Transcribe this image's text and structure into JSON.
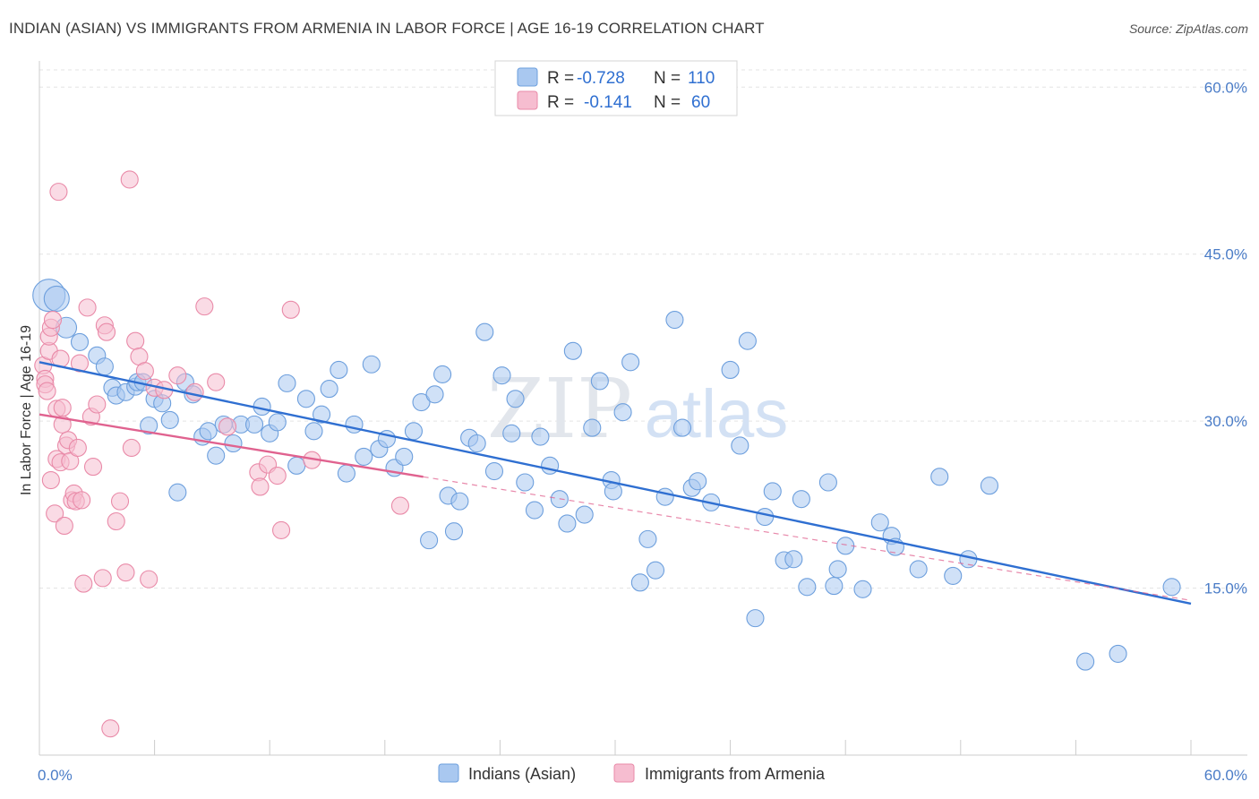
{
  "header": {
    "title": "INDIAN (ASIAN) VS IMMIGRANTS FROM ARMENIA IN LABOR FORCE | AGE 16-19 CORRELATION CHART",
    "source": "Source: ZipAtlas.com"
  },
  "legend": {
    "r_label": "R =",
    "n_label": "N =",
    "series": [
      {
        "r": "-0.728",
        "n": "110",
        "color": "#a9c8f0",
        "stroke": "#6d9fdd"
      },
      {
        "r": "-0.141",
        "n": "60",
        "color": "#f6bdd0",
        "stroke": "#e98aa8"
      }
    ]
  },
  "watermark": {
    "zip": "ZIP",
    "atlas": "atlas"
  },
  "chart_data": {
    "type": "scatter",
    "title": "INDIAN (ASIAN) VS IMMIGRANTS FROM ARMENIA IN LABOR FORCE | AGE 16-19 CORRELATION CHART",
    "xlabel": "",
    "ylabel": "In Labor Force | Age 16-19",
    "xlim": [
      0,
      60
    ],
    "ylim": [
      0,
      63
    ],
    "x_tick_labels": [
      "0.0%",
      "60.0%"
    ],
    "y_ticks": [
      15,
      30,
      45,
      60
    ],
    "y_tick_labels": [
      "15.0%",
      "30.0%",
      "45.0%",
      "60.0%"
    ],
    "grid": true,
    "legend_position": "bottom-center",
    "series": [
      {
        "name": "Indians (Asian)",
        "color": "#a9c8f0",
        "stroke": "#6d9fdd",
        "line_color": "#2f6fd1",
        "trend": {
          "x": [
            0,
            60
          ],
          "y": [
            35.3,
            13.6
          ]
        },
        "points": [
          [
            0.5,
            41.3
          ],
          [
            0.9,
            41.0
          ],
          [
            1.4,
            38.4
          ],
          [
            2.1,
            37.1
          ],
          [
            3.0,
            35.9
          ],
          [
            3.4,
            34.9
          ],
          [
            3.8,
            33.0
          ],
          [
            4.0,
            32.3
          ],
          [
            4.5,
            32.6
          ],
          [
            5.0,
            33.1
          ],
          [
            5.1,
            33.5
          ],
          [
            5.4,
            33.5
          ],
          [
            5.7,
            29.6
          ],
          [
            6.0,
            32.0
          ],
          [
            6.4,
            31.6
          ],
          [
            6.8,
            30.1
          ],
          [
            7.2,
            23.6
          ],
          [
            7.6,
            33.5
          ],
          [
            8.0,
            32.4
          ],
          [
            8.5,
            28.6
          ],
          [
            8.8,
            29.1
          ],
          [
            9.2,
            26.9
          ],
          [
            9.6,
            29.7
          ],
          [
            10.1,
            28.0
          ],
          [
            10.5,
            29.7
          ],
          [
            11.2,
            29.7
          ],
          [
            11.6,
            31.3
          ],
          [
            12.0,
            28.9
          ],
          [
            12.4,
            29.9
          ],
          [
            12.9,
            33.4
          ],
          [
            13.4,
            26.0
          ],
          [
            13.9,
            32.0
          ],
          [
            14.3,
            29.1
          ],
          [
            14.7,
            30.6
          ],
          [
            15.1,
            32.9
          ],
          [
            15.6,
            34.6
          ],
          [
            16.0,
            25.3
          ],
          [
            16.4,
            29.7
          ],
          [
            16.9,
            26.8
          ],
          [
            17.3,
            35.1
          ],
          [
            17.7,
            27.5
          ],
          [
            18.1,
            28.4
          ],
          [
            18.5,
            25.8
          ],
          [
            19.0,
            26.8
          ],
          [
            19.5,
            29.1
          ],
          [
            19.9,
            31.7
          ],
          [
            20.3,
            19.3
          ],
          [
            20.6,
            32.4
          ],
          [
            21.0,
            34.2
          ],
          [
            21.3,
            23.3
          ],
          [
            21.6,
            20.1
          ],
          [
            21.9,
            22.8
          ],
          [
            22.4,
            28.5
          ],
          [
            22.8,
            28.0
          ],
          [
            23.2,
            38.0
          ],
          [
            23.7,
            25.5
          ],
          [
            24.1,
            34.1
          ],
          [
            24.6,
            28.9
          ],
          [
            24.8,
            32.0
          ],
          [
            25.3,
            24.5
          ],
          [
            25.8,
            22.0
          ],
          [
            26.1,
            28.6
          ],
          [
            26.6,
            26.0
          ],
          [
            27.1,
            23.0
          ],
          [
            27.5,
            20.8
          ],
          [
            27.8,
            36.3
          ],
          [
            28.4,
            21.6
          ],
          [
            28.8,
            29.4
          ],
          [
            29.2,
            33.6
          ],
          [
            29.8,
            24.7
          ],
          [
            29.9,
            23.7
          ],
          [
            30.4,
            30.8
          ],
          [
            30.8,
            35.3
          ],
          [
            31.3,
            15.5
          ],
          [
            31.7,
            19.4
          ],
          [
            32.1,
            16.6
          ],
          [
            32.6,
            23.2
          ],
          [
            33.1,
            39.1
          ],
          [
            33.5,
            29.4
          ],
          [
            34.0,
            24.0
          ],
          [
            34.3,
            24.6
          ],
          [
            35.0,
            22.7
          ],
          [
            36.0,
            34.6
          ],
          [
            36.5,
            27.8
          ],
          [
            36.9,
            37.2
          ],
          [
            37.3,
            12.3
          ],
          [
            37.8,
            21.4
          ],
          [
            38.2,
            23.7
          ],
          [
            38.8,
            17.5
          ],
          [
            39.3,
            17.6
          ],
          [
            39.7,
            23.0
          ],
          [
            40.0,
            15.1
          ],
          [
            41.1,
            24.5
          ],
          [
            41.4,
            15.2
          ],
          [
            41.6,
            16.7
          ],
          [
            42.0,
            18.8
          ],
          [
            42.9,
            14.9
          ],
          [
            43.8,
            20.9
          ],
          [
            44.4,
            19.7
          ],
          [
            44.6,
            18.7
          ],
          [
            45.8,
            16.7
          ],
          [
            46.9,
            25.0
          ],
          [
            47.6,
            16.1
          ],
          [
            48.4,
            17.6
          ],
          [
            49.5,
            24.2
          ],
          [
            54.5,
            8.4
          ],
          [
            56.2,
            9.1
          ],
          [
            59.0,
            15.1
          ]
        ]
      },
      {
        "name": "Immigrants from Armenia",
        "color": "#f6bdd0",
        "stroke": "#e98aa8",
        "line_color": "#e0628f",
        "trend": {
          "x": [
            0,
            20
          ],
          "y": [
            30.6,
            25.0
          ]
        },
        "trend_extended": {
          "x": [
            20,
            60
          ],
          "y": [
            25.0,
            13.9
          ]
        },
        "points": [
          [
            0.2,
            35.0
          ],
          [
            0.3,
            33.8
          ],
          [
            0.3,
            33.3
          ],
          [
            0.4,
            32.7
          ],
          [
            0.5,
            36.3
          ],
          [
            0.5,
            37.6
          ],
          [
            0.6,
            38.4
          ],
          [
            0.6,
            24.7
          ],
          [
            0.7,
            39.1
          ],
          [
            0.8,
            21.7
          ],
          [
            0.9,
            31.1
          ],
          [
            0.9,
            26.6
          ],
          [
            1.0,
            50.6
          ],
          [
            1.1,
            26.3
          ],
          [
            1.1,
            35.6
          ],
          [
            1.2,
            31.2
          ],
          [
            1.2,
            29.7
          ],
          [
            1.3,
            20.6
          ],
          [
            1.4,
            27.8
          ],
          [
            1.5,
            28.3
          ],
          [
            1.6,
            26.4
          ],
          [
            1.7,
            22.9
          ],
          [
            1.8,
            23.5
          ],
          [
            1.9,
            22.8
          ],
          [
            2.0,
            27.6
          ],
          [
            2.1,
            35.2
          ],
          [
            2.2,
            22.9
          ],
          [
            2.3,
            15.4
          ],
          [
            2.5,
            40.2
          ],
          [
            2.7,
            30.4
          ],
          [
            2.8,
            25.9
          ],
          [
            3.0,
            31.5
          ],
          [
            3.3,
            15.9
          ],
          [
            3.4,
            38.6
          ],
          [
            3.5,
            38.0
          ],
          [
            3.7,
            2.4
          ],
          [
            4.0,
            21.0
          ],
          [
            4.2,
            22.8
          ],
          [
            4.5,
            16.4
          ],
          [
            4.7,
            51.7
          ],
          [
            4.8,
            27.6
          ],
          [
            5.0,
            37.2
          ],
          [
            5.2,
            35.8
          ],
          [
            5.5,
            34.5
          ],
          [
            5.7,
            15.8
          ],
          [
            6.0,
            33.0
          ],
          [
            6.5,
            32.8
          ],
          [
            7.2,
            34.1
          ],
          [
            8.1,
            32.6
          ],
          [
            8.6,
            40.3
          ],
          [
            9.2,
            33.5
          ],
          [
            9.8,
            29.5
          ],
          [
            11.4,
            25.4
          ],
          [
            11.5,
            24.1
          ],
          [
            11.9,
            26.1
          ],
          [
            12.4,
            25.1
          ],
          [
            12.6,
            20.2
          ],
          [
            13.1,
            40.0
          ],
          [
            14.2,
            26.5
          ],
          [
            18.8,
            22.4
          ]
        ]
      }
    ]
  }
}
